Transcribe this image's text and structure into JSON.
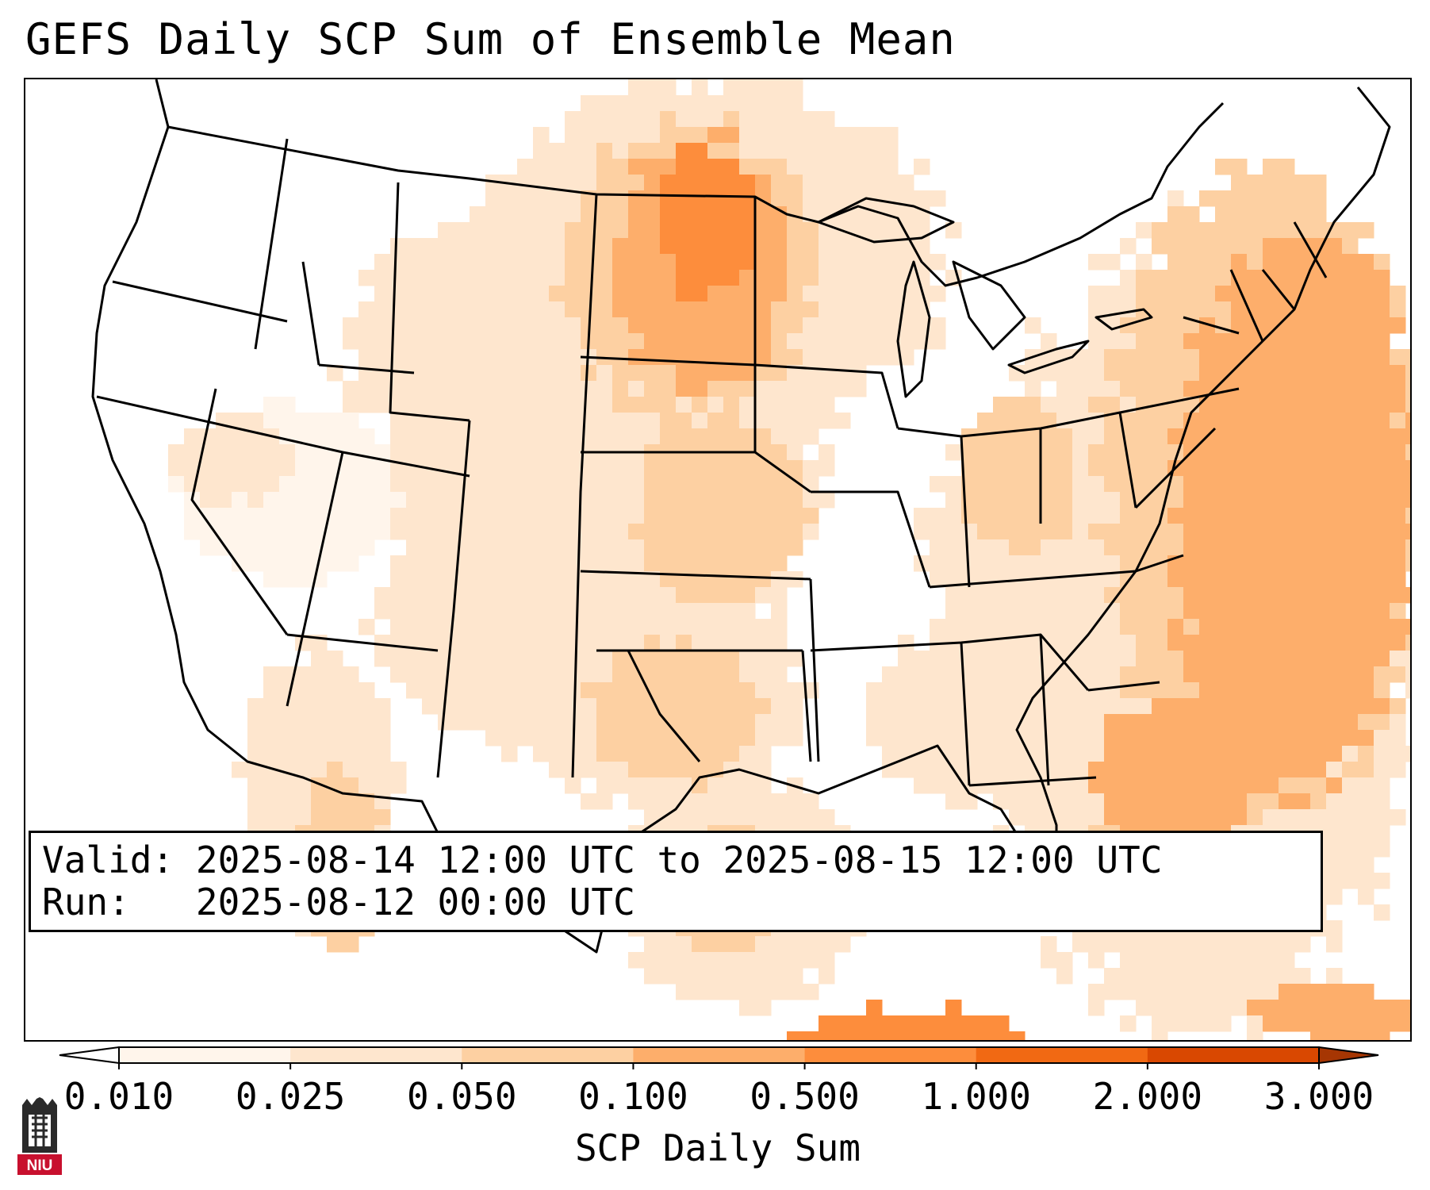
{
  "title": "GEFS Daily SCP Sum of Ensemble Mean",
  "info": {
    "valid_label": "Valid:",
    "valid_value": "2025-08-14 12:00 UTC to 2025-08-15 12:00 UTC",
    "run_label": "Run:",
    "run_value": "2025-08-12 00:00 UTC"
  },
  "colorbar": {
    "label": "SCP Daily Sum",
    "ticks": [
      "0.010",
      "0.025",
      "0.050",
      "0.100",
      "0.500",
      "1.000",
      "2.000",
      "3.000"
    ],
    "colors": [
      "#fff5eb",
      "#fee6ce",
      "#fdd0a2",
      "#fdae6b",
      "#fd8d3c",
      "#f16913",
      "#d94801",
      "#a63603"
    ],
    "under_color": "#ffffff",
    "over_color": "#a63603",
    "extend": "both"
  },
  "logo": {
    "text": "NIU",
    "color": "#c8102e"
  },
  "map": {
    "field": "SCP daily sum",
    "region": "Contiguous United States"
  }
}
